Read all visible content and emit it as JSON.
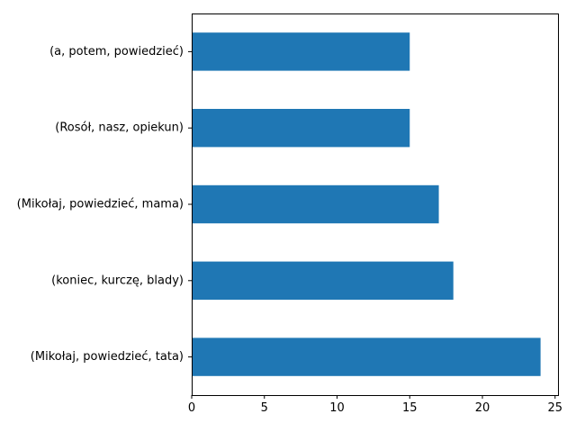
{
  "chart_data": {
    "type": "bar",
    "orientation": "horizontal",
    "title": "",
    "xlabel": "",
    "ylabel": "",
    "categories": [
      "(Mikołaj, powiedzieć, tata)",
      "(koniec, kurczę, blady)",
      "(Mikołaj, powiedzieć, mama)",
      "(Rosół, nasz, opiekun)",
      "(a, potem, powiedzieć)"
    ],
    "values": [
      24,
      18,
      17,
      15,
      15
    ],
    "xlim": [
      0,
      25.2
    ],
    "xticks": [
      0,
      5,
      10,
      15,
      20,
      25
    ],
    "grid": false,
    "bar_color": "#1f77b4"
  }
}
